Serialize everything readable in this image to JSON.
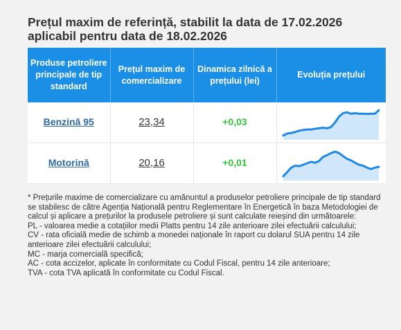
{
  "title_line1": "Prețul maxim de referință, stabilit la data de 17.02.2026",
  "title_line2": "aplicabil pentru data de 18.02.2026",
  "headers": {
    "product": "Produse petroliere principale de tip standard",
    "price": "Prețul maxim de comercializare",
    "dynamic": "Dinamica zilnică a prețului (lei)",
    "evolution": "Evoluția prețului"
  },
  "rows": [
    {
      "product": "Benzină 95",
      "price": "23,34",
      "dynamic": "+0,03",
      "sparkline": [
        0.05,
        0.12,
        0.14,
        0.17,
        0.22,
        0.24,
        0.26,
        0.26,
        0.28,
        0.3,
        0.32,
        0.3,
        0.34,
        0.5,
        0.7,
        0.82,
        0.85,
        0.8,
        0.82,
        0.8,
        0.8,
        0.79,
        0.8,
        0.8,
        0.92
      ]
    },
    {
      "product": "Motorină",
      "price": "20,16",
      "dynamic": "+0,01",
      "sparkline": [
        0.05,
        0.2,
        0.35,
        0.42,
        0.4,
        0.45,
        0.5,
        0.55,
        0.52,
        0.58,
        0.72,
        0.78,
        0.85,
        0.9,
        0.85,
        0.75,
        0.65,
        0.6,
        0.52,
        0.45,
        0.42,
        0.35,
        0.3,
        0.35,
        0.38
      ]
    }
  ],
  "colors": {
    "header_bg": "#1b8fe6",
    "line": "#1e88e5",
    "fill": "#cfe6fb",
    "positive": "#36c23a",
    "link": "#2f6aa5"
  },
  "notes": [
    "* Prețurile maxime de comercializare cu amănuntul a produselor petroliere principale de tip standard se stabilesc de către Agenția Națională pentru Reglementare în Energetică în baza Metodologiei de calcul și aplicare a prețurilor la produsele petroliere și sunt calculate reieșind din următoarele:",
    "PL - valoarea medie a cotațiilor medii Platts pentru 14 zile anterioare zilei efectuării calculului;",
    "CV - rata oficială medie de schimb a monedei naționale în raport cu dolarul SUA pentru 14 zile anterioare zilei efectuării calculului;",
    "MC - marja comercială specifică;",
    "AC - cota accizelor, aplicate în conformitate cu Codul Fiscal, pentru 14 zile anterioare;",
    "TVA - cota TVA aplicată în conformitate cu Codul Fiscal."
  ]
}
